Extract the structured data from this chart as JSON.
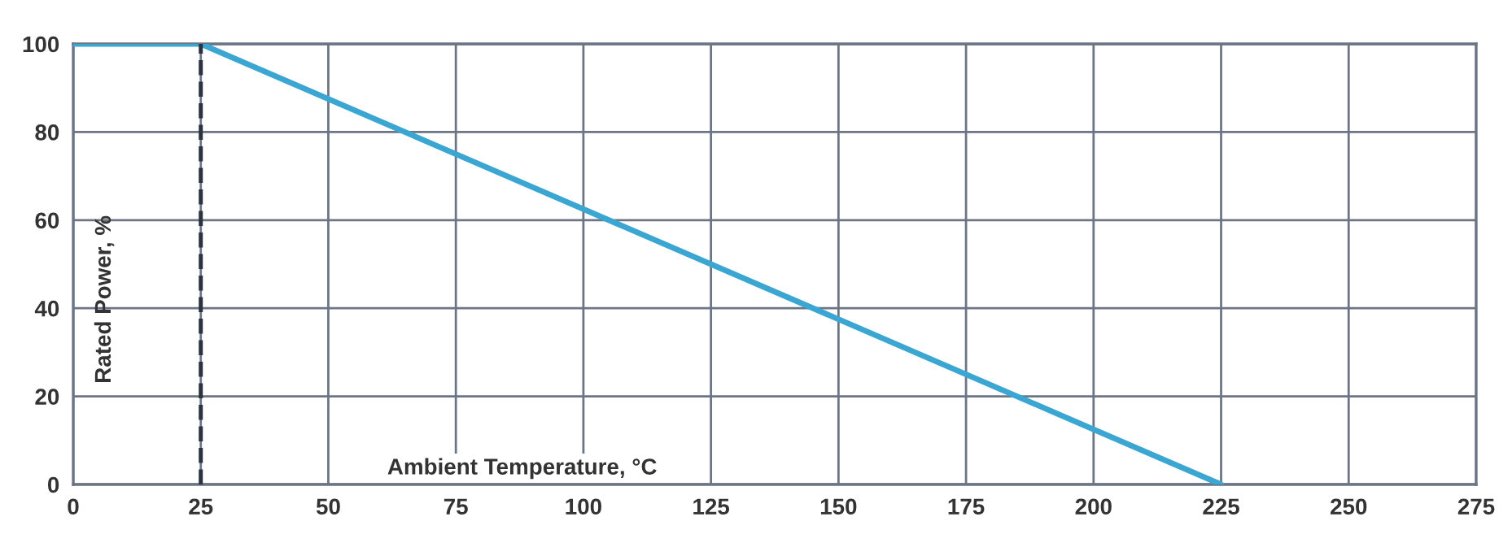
{
  "chart_data": {
    "type": "line",
    "xlabel": "Ambient Temperature, °C",
    "ylabel": "Rated Power, %",
    "series": [
      {
        "color": "#3ba6d2",
        "x": [
          0,
          25,
          225
        ],
        "values": [
          100,
          100,
          0
        ]
      }
    ],
    "xlim": [
      0,
      275
    ],
    "ylim": [
      0,
      100
    ],
    "xticks": [
      0,
      25,
      50,
      75,
      100,
      125,
      150,
      175,
      200,
      225,
      250,
      275
    ],
    "yticks": [
      0,
      20,
      40,
      60,
      80,
      100
    ],
    "ref_lines": [
      {
        "axis": "x",
        "value": 25,
        "color": "#2b3240",
        "line_style": "dashed"
      }
    ],
    "grid": true,
    "marker": "none",
    "line_style": "solid"
  }
}
